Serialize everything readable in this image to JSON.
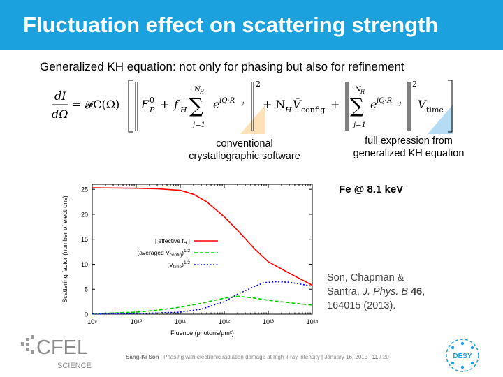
{
  "slide": {
    "title": "Fluctuation effect on scattering strength",
    "subtitle": "Generalized KH equation: not only for phasing but also for refinement"
  },
  "equation": {
    "lhs_numerator": "dI",
    "lhs_denominator": "dΩ",
    "prefactor": "= 𝓕C(Ω)",
    "term_fp": "F",
    "term_fp_sup": "0",
    "term_fp_sub": "P",
    "plus": "+",
    "term_fh": "f̄",
    "term_fh_sub": "H",
    "sum_upper": "N",
    "sum_upper_sub": "H",
    "sum_lower": "j=1",
    "exp_term": "e",
    "exp_sup": "iQ·R",
    "exp_sup_sub": "j",
    "power": "2",
    "term_config": "+ N",
    "term_config_sub_h": "H",
    "term_config_v": "V̄",
    "term_config_sub": "config",
    "term_time_v": "V",
    "term_time_sub": "time"
  },
  "notes": {
    "left_line1": "conventional",
    "left_line2": "crystallographic software",
    "right_line1": "full expression from",
    "right_line2": "generalized KH equation"
  },
  "colors": {
    "title_bar": "#1aa1de",
    "wedge_left": "#fde2b8",
    "wedge_right": "#b5dcf4",
    "series_effective": "#ff0000",
    "series_config": "#00cc00",
    "series_time": "#0000ff"
  },
  "chart_data": {
    "type": "line",
    "x_scale": "log",
    "xlabel": "Fluence (photons/μm²)",
    "ylabel": "Scattering factor (number of electrons)",
    "xlim": [
      1000000000.0,
      100000000000000.0
    ],
    "ylim": [
      0,
      26
    ],
    "x_ticks": [
      "10⁹",
      "10¹⁰",
      "10¹¹",
      "10¹²",
      "10¹³",
      "10¹⁴"
    ],
    "y_ticks": [
      "0",
      "5",
      "10",
      "15",
      "20",
      "25"
    ],
    "legend_position": "center-left",
    "series": [
      {
        "name": "| effective f_H |",
        "style": "solid",
        "x": [
          1000000000.0,
          10000000000.0,
          30000000000.0,
          100000000000.0,
          200000000000.0,
          400000000000.0,
          1000000000000.0,
          2000000000000.0,
          5000000000000.0,
          10000000000000.0,
          30000000000000.0,
          100000000000000.0
        ],
        "y": [
          25.3,
          25.2,
          25.1,
          24.8,
          24.0,
          22.5,
          19.5,
          16.8,
          13.0,
          10.5,
          8.2,
          5.8
        ]
      },
      {
        "name": "(averaged V_config)^1/2",
        "style": "dashed",
        "x": [
          1000000000.0,
          10000000000.0,
          30000000000.0,
          100000000000.0,
          300000000000.0,
          1000000000000.0,
          2000000000000.0,
          5000000000000.0,
          10000000000000.0,
          30000000000000.0,
          100000000000000.0
        ],
        "y": [
          0.1,
          0.4,
          0.8,
          1.4,
          2.2,
          3.2,
          3.6,
          3.2,
          2.8,
          2.3,
          1.8
        ]
      },
      {
        "name": "(V_time)^1/2",
        "style": "dotted",
        "x": [
          1000000000.0,
          10000000000.0,
          100000000000.0,
          300000000000.0,
          1000000000000.0,
          2000000000000.0,
          5000000000000.0,
          8000000000000.0,
          15000000000000.0,
          30000000000000.0,
          100000000000000.0
        ],
        "y": [
          0.05,
          0.1,
          0.4,
          1.0,
          2.5,
          4.0,
          5.6,
          6.3,
          6.5,
          6.4,
          5.6
        ]
      }
    ],
    "legend_labels": [
      {
        "text": "| effective f",
        "sub": "H",
        "tail": " |"
      },
      {
        "text": "(averaged V",
        "sub": "config",
        "tail": ")",
        "sup": "1/2"
      },
      {
        "text": "(V",
        "sub": "time",
        "tail": ")",
        "sup": "1/2"
      }
    ]
  },
  "annotation": {
    "fe_label": "Fe @ 8.1 keV"
  },
  "reference": {
    "line1": "Son, Chapman &",
    "line2_a": "Santra, ",
    "line2_journal": "J. Phys. B",
    "line2_volume": "46",
    "line2_b": ",",
    "line3": "164015 (2013)."
  },
  "footer": {
    "author": "Sang-Ki Son",
    "sep": "|",
    "talk": "Phasing with electronic radiation damage at high x-ray intensity",
    "date": "January 16, 2015",
    "page": "11",
    "total": "/ 20"
  },
  "logos": {
    "cfel": "CFEL",
    "cfel_sub": "SCIENCE",
    "desy": "DESY"
  }
}
